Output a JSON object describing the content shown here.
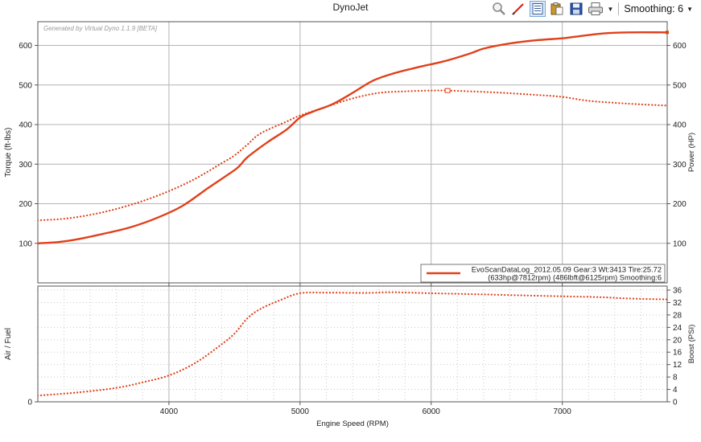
{
  "window": {
    "title": "DynoJet"
  },
  "toolbar": {
    "smoothing_label": "Smoothing: 6",
    "icons": [
      "zoom-icon",
      "pen-icon",
      "grid-icon",
      "clipboard-icon",
      "save-icon",
      "print-icon"
    ]
  },
  "colors": {
    "series": "#e0401a",
    "grid": "#b4b4b4",
    "minor_grid": "#c8c8c8",
    "frame": "#555555"
  },
  "chart_data": [
    {
      "type": "line",
      "watermark": "Generated by Virtual Dyno 1.1.9 [BETA]",
      "xlabel": "",
      "ylabel": "Torque (ft-lbs)",
      "y2label": "Power (HP)",
      "xlim": [
        3000,
        7800
      ],
      "ylim": [
        0,
        660
      ],
      "y2lim": [
        0,
        660
      ],
      "xticks": [
        4000,
        5000,
        6000,
        7000
      ],
      "yticks": [
        100,
        200,
        300,
        400,
        500,
        600
      ],
      "y2ticks": [
        100,
        200,
        300,
        400,
        500,
        600
      ],
      "grid": true,
      "legend": {
        "placement": "bottom-right",
        "line1": "EvoScanDataLog_2012.05.09 Gear:3 Wt:3413 Tire:25.72",
        "line2": "(633hp@7812rpm) (486lbft@6125rpm) Smoothing:6"
      },
      "series": [
        {
          "name": "",
          "style": "solid",
          "x": [
            3000,
            3150,
            3300,
            3500,
            3700,
            3900,
            4100,
            4300,
            4500,
            4550,
            4600,
            4750,
            4900,
            5000,
            5100,
            5250,
            5400,
            5550,
            5700,
            5900,
            6100,
            6300,
            6400,
            6600,
            6800,
            7000,
            7100,
            7300,
            7500,
            7800
          ],
          "y": [
            100,
            103,
            110,
            124,
            140,
            163,
            194,
            240,
            285,
            300,
            318,
            355,
            388,
            418,
            433,
            452,
            480,
            510,
            528,
            545,
            560,
            580,
            592,
            605,
            613,
            618,
            622,
            630,
            633,
            633
          ]
        },
        {
          "name": "",
          "style": "dotted",
          "x": [
            3000,
            3200,
            3400,
            3600,
            3800,
            4000,
            4200,
            4400,
            4500,
            4600,
            4700,
            4900,
            5000,
            5200,
            5400,
            5600,
            5800,
            6000,
            6125,
            6300,
            6500,
            6800,
            7000,
            7200,
            7400,
            7600,
            7800
          ],
          "y": [
            158,
            162,
            172,
            187,
            207,
            232,
            263,
            302,
            322,
            350,
            378,
            408,
            423,
            445,
            466,
            480,
            484,
            486,
            486,
            484,
            481,
            475,
            470,
            460,
            455,
            451,
            448
          ],
          "marker": {
            "x": 6125,
            "y": 486
          }
        }
      ]
    },
    {
      "type": "line",
      "xlabel": "Engine Speed (RPM)",
      "ylabel": "Air / Fuel",
      "y2label": "Boost (PSI)",
      "xlim": [
        3000,
        7800
      ],
      "ylim": [
        0,
        37.3
      ],
      "y2lim": [
        0,
        37.3
      ],
      "xticks": [
        4000,
        5000,
        6000,
        7000
      ],
      "yticks": [
        0
      ],
      "y2ticks": [
        0,
        4,
        8,
        12,
        16,
        20,
        24,
        28,
        32,
        36
      ],
      "grid": true,
      "series": [
        {
          "name": "",
          "style": "dotted",
          "x": [
            3000,
            3300,
            3600,
            3800,
            4000,
            4200,
            4400,
            4500,
            4600,
            4700,
            4850,
            5000,
            5200,
            5500,
            5700,
            6000,
            6300,
            6600,
            7000,
            7300,
            7500,
            7800
          ],
          "y": [
            2,
            3,
            4.5,
            6.3,
            8.5,
            12.5,
            18.5,
            22,
            27,
            30,
            32.8,
            35,
            35.2,
            35.1,
            35.3,
            35,
            34.7,
            34.4,
            34,
            33.7,
            33.3,
            33
          ]
        }
      ]
    }
  ]
}
